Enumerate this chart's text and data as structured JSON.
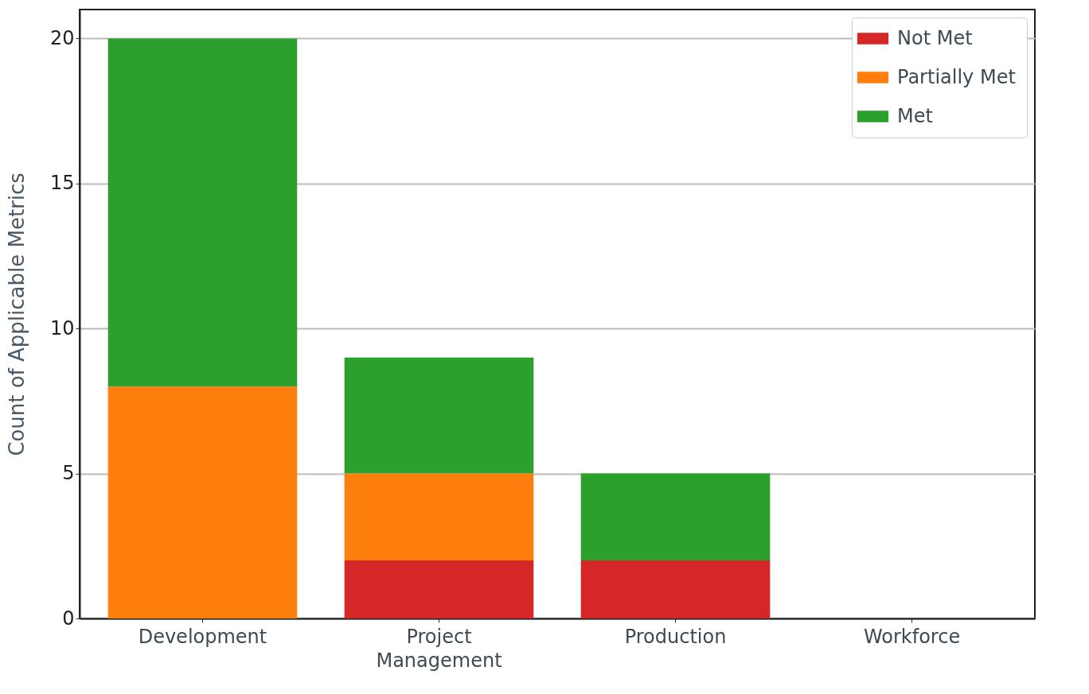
{
  "chart_data": {
    "type": "bar",
    "stacked": true,
    "ylabel": "Count of Applicable Metrics",
    "categories": [
      "Development",
      "Project Management",
      "Production",
      "Workforce"
    ],
    "series": [
      {
        "name": "Not Met",
        "color": "#d62728",
        "values": [
          0,
          2,
          2,
          0
        ]
      },
      {
        "name": "Partially Met",
        "color": "#ff7f0e",
        "values": [
          8,
          3,
          0,
          0
        ]
      },
      {
        "name": "Met",
        "color": "#2ca02c",
        "values": [
          12,
          4,
          3,
          0
        ]
      }
    ],
    "ylim": [
      0,
      21
    ],
    "yticks": [
      0,
      5,
      10,
      15,
      20
    ],
    "grid": "y",
    "legend": "top right"
  }
}
